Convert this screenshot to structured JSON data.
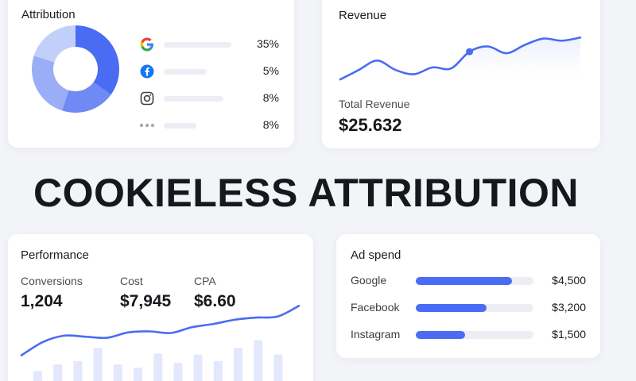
{
  "headline": "COOKIELESS ATTRIBUTION",
  "colors": {
    "accent": "#4a6cf2",
    "donut_segments": [
      "#4a6cf2",
      "#6f89f5",
      "#9aaef8",
      "#c3cffb"
    ],
    "google": [
      "#ea4335",
      "#fbbc05",
      "#34a853",
      "#4285f4"
    ],
    "facebook": "#1877f2"
  },
  "attribution": {
    "title": "Attribution",
    "donut": [
      35,
      20,
      25,
      20
    ],
    "channels": [
      {
        "icon": "google-icon",
        "share": "35%",
        "level": 0.35
      },
      {
        "icon": "facebook-icon",
        "share": "5%",
        "level": 0.05
      },
      {
        "icon": "instagram-icon",
        "share": "8%",
        "level": 0.08
      },
      {
        "icon": "more-icon",
        "share": "8%",
        "level": 0.08
      }
    ]
  },
  "revenue": {
    "title": "Revenue",
    "total_label": "Total Revenue",
    "total_value": "$25.632",
    "trend": [
      0.12,
      0.3,
      0.48,
      0.3,
      0.22,
      0.35,
      0.33,
      0.65,
      0.75,
      0.62,
      0.78,
      0.9,
      0.86,
      0.92
    ],
    "highlight_index": 7
  },
  "performance": {
    "title": "Performance",
    "metrics": [
      {
        "label": "Conversions",
        "value": "1,204"
      },
      {
        "label": "Cost",
        "value": "$7,945"
      },
      {
        "label": "CPA",
        "value": "$6.60"
      }
    ],
    "trend": [
      0.05,
      0.3,
      0.42,
      0.4,
      0.38,
      0.48,
      0.5,
      0.47,
      0.58,
      0.64,
      0.72,
      0.76,
      0.78,
      0.98
    ],
    "bars": [
      0.1,
      0.18,
      0.22,
      0.38,
      0.18,
      0.14,
      0.31,
      0.2,
      0.3,
      0.22,
      0.38,
      0.47,
      0.3
    ]
  },
  "adspend": {
    "title": "Ad spend",
    "rows": [
      {
        "label": "Google",
        "value": "$4,500",
        "level": 0.82
      },
      {
        "label": "Facebook",
        "value": "$3,200",
        "level": 0.6
      },
      {
        "label": "Instagram",
        "value": "$1,500",
        "level": 0.42
      }
    ]
  }
}
